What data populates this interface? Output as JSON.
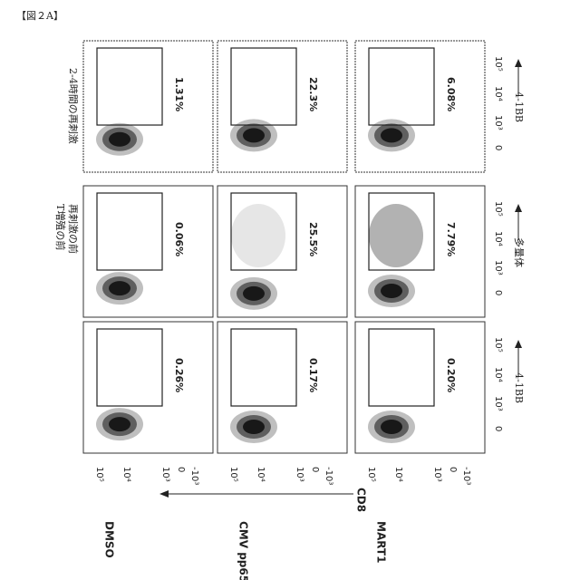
{
  "figure_label": "【図２A】",
  "rows": [
    {
      "name": "DMSO",
      "values": [
        "0.26%",
        "0.06%",
        "1.31%"
      ]
    },
    {
      "name": "CMV pp65",
      "values": [
        "0.17%",
        "25.5%",
        "22.3%"
      ]
    },
    {
      "name": "MART1",
      "values": [
        "0.20%",
        "7.79%",
        "6.08%"
      ]
    }
  ],
  "columns": [
    {
      "label": [],
      "x_axis": "4-1BB"
    },
    {
      "label": [
        "T増殖の前",
        "再刺激の前"
      ],
      "x_axis": "多量体"
    },
    {
      "label": [
        "2-4時間の再刺激"
      ],
      "x_axis": "4-1BB"
    }
  ],
  "y_axis": "CD8",
  "y_ticks": [
    "10⁵",
    "10⁴",
    "10³",
    "0",
    "-10³"
  ],
  "x_ticks": [
    "0",
    "10³",
    "10⁴",
    "10⁵"
  ]
}
